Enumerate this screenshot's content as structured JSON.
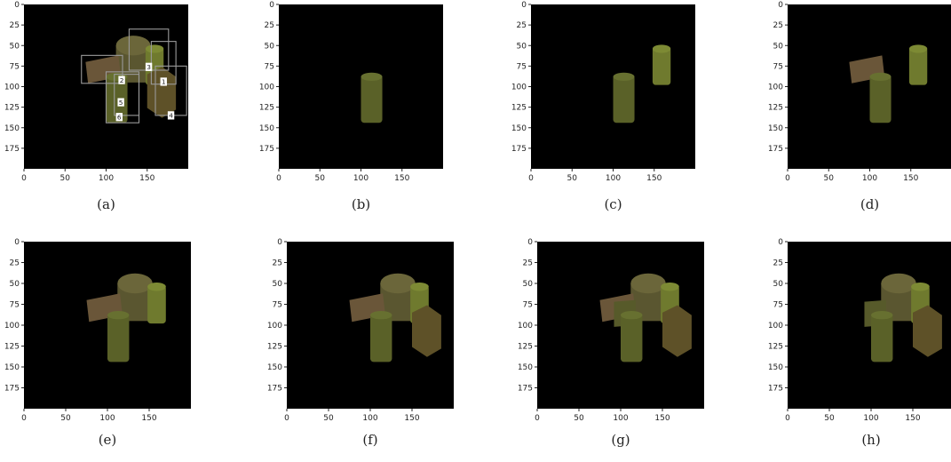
{
  "panels": [
    {
      "caption": "(a)"
    },
    {
      "caption": "(b)"
    },
    {
      "caption": "(c)"
    },
    {
      "caption": "(d)"
    },
    {
      "caption": "(e)"
    },
    {
      "caption": "(f)"
    },
    {
      "caption": "(g)"
    },
    {
      "caption": "(h)"
    }
  ],
  "xlim": [
    0,
    200
  ],
  "ylim": [
    0,
    200
  ],
  "xticks": [
    0,
    50,
    100,
    150
  ],
  "yticks": [
    0,
    25,
    50,
    75,
    100,
    125,
    150,
    175
  ],
  "box_labels": [
    "2",
    "5",
    "6",
    "3",
    "1",
    "4"
  ]
}
